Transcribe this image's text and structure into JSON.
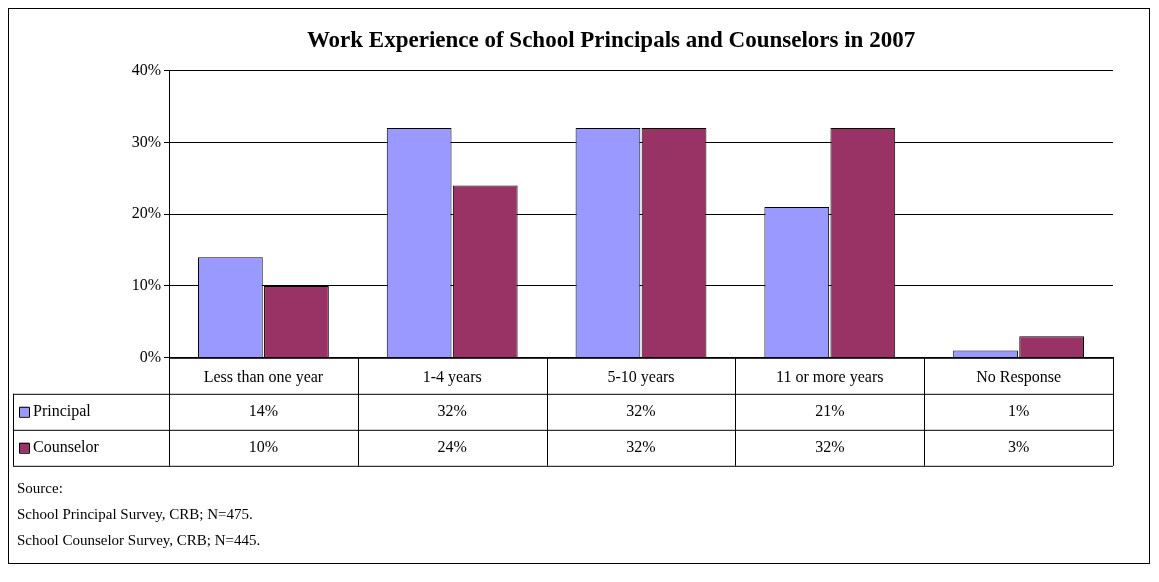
{
  "chart_data": {
    "type": "bar",
    "title": "Work Experience of School Principals and Counselors in 2007",
    "categories": [
      "Less than one year",
      "1-4 years",
      "5-10 years",
      "11 or more years",
      "No Response"
    ],
    "series": [
      {
        "name": "Principal",
        "color": "#9999ff",
        "values": [
          14,
          32,
          32,
          21,
          1
        ],
        "value_labels": [
          "14%",
          "32%",
          "32%",
          "21%",
          "1%"
        ]
      },
      {
        "name": "Counselor",
        "color": "#993366",
        "values": [
          10,
          24,
          32,
          32,
          3
        ],
        "value_labels": [
          "10%",
          "24%",
          "32%",
          "32%",
          "3%"
        ]
      }
    ],
    "ylim": [
      0,
      40
    ],
    "yticks": [
      {
        "value": 0,
        "label": "0%"
      },
      {
        "value": 10,
        "label": "10%"
      },
      {
        "value": 20,
        "label": "20%"
      },
      {
        "value": 30,
        "label": "30%"
      },
      {
        "value": 40,
        "label": "40%"
      }
    ],
    "grid": "y",
    "legend": "bottom",
    "annotations": [
      "Source:",
      "School Principal Survey, CRB; N=475.",
      "School Counselor Survey, CRB; N=445."
    ]
  }
}
